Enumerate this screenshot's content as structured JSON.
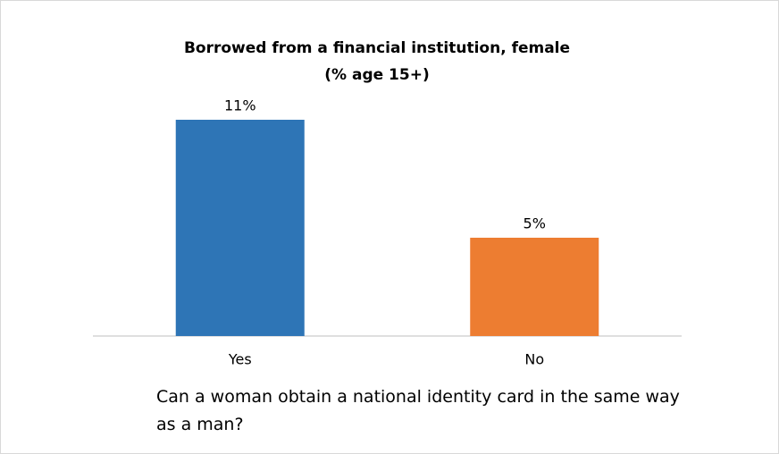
{
  "chart_data": {
    "type": "bar",
    "title": "Borrowed from a financial institution, female",
    "subtitle": "(% age 15+)",
    "x_label": "Can a woman obtain a national identity card in the same way as a man?",
    "categories": [
      "Yes",
      "No"
    ],
    "values": [
      11,
      5
    ],
    "value_labels": [
      "11%",
      "5%"
    ],
    "colors": [
      "#2e75b6",
      "#ed7d31"
    ],
    "ylim": [
      0,
      12
    ],
    "grid": false
  }
}
